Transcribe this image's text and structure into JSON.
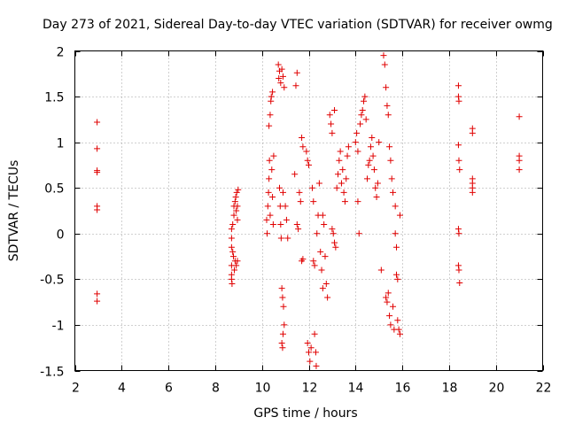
{
  "chart_data": {
    "type": "scatter",
    "title": "Day 273 of 2021, Sidereal Day-to-day VTEC variation (SDTVAR) for receiver owmg",
    "xlabel": "GPS time / hours",
    "ylabel": "SDTVAR / TECUs",
    "xlim": [
      2,
      22
    ],
    "ylim": [
      -1.5,
      2
    ],
    "xticks": [
      2,
      4,
      6,
      8,
      10,
      12,
      14,
      16,
      18,
      20,
      22
    ],
    "yticks": [
      -1.5,
      -1,
      -0.5,
      0,
      0.5,
      1,
      1.5,
      2
    ],
    "ytick_labels": [
      "-1.5",
      "-1",
      "-0.5",
      "0",
      "0.5",
      "1",
      "1.5",
      "2"
    ],
    "grid": true,
    "marker": "+",
    "color": "#e00000",
    "points": [
      [
        2.95,
        1.22
      ],
      [
        2.95,
        0.93
      ],
      [
        2.95,
        0.69
      ],
      [
        2.95,
        0.67
      ],
      [
        2.95,
        0.3
      ],
      [
        2.95,
        0.26
      ],
      [
        2.95,
        -0.66
      ],
      [
        2.95,
        -0.74
      ],
      [
        8.7,
        0.05
      ],
      [
        8.7,
        -0.05
      ],
      [
        8.7,
        -0.15
      ],
      [
        8.7,
        -0.35
      ],
      [
        8.7,
        -0.45
      ],
      [
        8.7,
        -0.5
      ],
      [
        8.72,
        -0.55
      ],
      [
        8.75,
        0.1
      ],
      [
        8.75,
        -0.2
      ],
      [
        8.78,
        -0.25
      ],
      [
        8.8,
        0.2
      ],
      [
        8.8,
        0.3
      ],
      [
        8.82,
        -0.4
      ],
      [
        8.85,
        -0.3
      ],
      [
        8.85,
        0.35
      ],
      [
        8.88,
        0.4
      ],
      [
        8.9,
        -0.35
      ],
      [
        8.9,
        0.25
      ],
      [
        8.92,
        0.45
      ],
      [
        8.95,
        -0.3
      ],
      [
        8.95,
        0.15
      ],
      [
        8.95,
        0.3
      ],
      [
        8.98,
        0.48
      ],
      [
        10.2,
        0.15
      ],
      [
        10.22,
        0.0
      ],
      [
        10.25,
        0.3
      ],
      [
        10.28,
        0.45
      ],
      [
        10.3,
        0.6
      ],
      [
        10.3,
        1.18
      ],
      [
        10.32,
        0.8
      ],
      [
        10.35,
        1.3
      ],
      [
        10.35,
        0.2
      ],
      [
        10.38,
        1.45
      ],
      [
        10.4,
        1.5
      ],
      [
        10.42,
        0.7
      ],
      [
        10.45,
        0.4
      ],
      [
        10.45,
        1.55
      ],
      [
        10.48,
        0.1
      ],
      [
        10.5,
        0.85
      ],
      [
        10.7,
        1.85
      ],
      [
        10.72,
        1.7
      ],
      [
        10.75,
        1.78
      ],
      [
        10.75,
        0.5
      ],
      [
        10.78,
        0.3
      ],
      [
        10.8,
        1.65
      ],
      [
        10.8,
        0.1
      ],
      [
        10.82,
        -0.05
      ],
      [
        10.85,
        1.8
      ],
      [
        10.85,
        -0.6
      ],
      [
        10.88,
        -0.7
      ],
      [
        10.9,
        1.72
      ],
      [
        10.9,
        0.45
      ],
      [
        10.92,
        -0.8
      ],
      [
        10.95,
        1.6
      ],
      [
        10.95,
        -1.0
      ],
      [
        10.85,
        -1.2
      ],
      [
        10.88,
        -1.25
      ],
      [
        10.9,
        -1.1
      ],
      [
        11.0,
        0.3
      ],
      [
        11.05,
        0.15
      ],
      [
        11.1,
        -0.05
      ],
      [
        11.4,
        0.65
      ],
      [
        11.45,
        1.62
      ],
      [
        11.5,
        1.76
      ],
      [
        11.5,
        0.1
      ],
      [
        11.55,
        0.05
      ],
      [
        11.6,
        0.45
      ],
      [
        11.65,
        0.35
      ],
      [
        11.7,
        -0.3
      ],
      [
        11.75,
        -0.28
      ],
      [
        11.7,
        1.05
      ],
      [
        11.75,
        0.95
      ],
      [
        11.9,
        0.9
      ],
      [
        11.95,
        0.8
      ],
      [
        12.0,
        0.75
      ],
      [
        11.95,
        -1.2
      ],
      [
        12.0,
        -1.3
      ],
      [
        12.05,
        -1.4
      ],
      [
        12.1,
        -1.25
      ],
      [
        12.15,
        0.5
      ],
      [
        12.2,
        0.35
      ],
      [
        12.2,
        -0.3
      ],
      [
        12.25,
        -0.35
      ],
      [
        12.25,
        -1.1
      ],
      [
        12.3,
        -1.3
      ],
      [
        12.32,
        -1.45
      ],
      [
        12.35,
        0.0
      ],
      [
        12.4,
        0.2
      ],
      [
        12.45,
        0.55
      ],
      [
        12.5,
        -0.2
      ],
      [
        12.55,
        -0.4
      ],
      [
        12.6,
        -0.6
      ],
      [
        12.6,
        0.2
      ],
      [
        12.65,
        0.1
      ],
      [
        12.7,
        -0.25
      ],
      [
        12.75,
        -0.55
      ],
      [
        12.8,
        -0.7
      ],
      [
        12.9,
        1.3
      ],
      [
        12.95,
        1.2
      ],
      [
        13.0,
        1.1
      ],
      [
        13.0,
        0.05
      ],
      [
        13.05,
        0.0
      ],
      [
        13.1,
        1.35
      ],
      [
        13.1,
        -0.1
      ],
      [
        13.15,
        -0.15
      ],
      [
        13.2,
        0.5
      ],
      [
        13.25,
        0.65
      ],
      [
        13.3,
        0.8
      ],
      [
        13.35,
        0.9
      ],
      [
        13.4,
        0.55
      ],
      [
        13.45,
        0.7
      ],
      [
        13.5,
        0.45
      ],
      [
        13.55,
        0.35
      ],
      [
        13.6,
        0.6
      ],
      [
        13.65,
        0.85
      ],
      [
        13.7,
        0.95
      ],
      [
        14.0,
        1.0
      ],
      [
        14.05,
        1.1
      ],
      [
        14.1,
        0.9
      ],
      [
        14.1,
        0.35
      ],
      [
        14.15,
        0.0
      ],
      [
        14.2,
        1.2
      ],
      [
        14.25,
        1.3
      ],
      [
        14.3,
        1.35
      ],
      [
        14.35,
        1.45
      ],
      [
        14.4,
        1.5
      ],
      [
        14.45,
        1.25
      ],
      [
        14.5,
        0.6
      ],
      [
        14.55,
        0.75
      ],
      [
        14.6,
        0.8
      ],
      [
        14.65,
        0.95
      ],
      [
        14.7,
        1.05
      ],
      [
        14.75,
        0.85
      ],
      [
        14.8,
        0.7
      ],
      [
        14.85,
        0.5
      ],
      [
        14.9,
        0.4
      ],
      [
        14.95,
        0.55
      ],
      [
        15.0,
        1.0
      ],
      [
        15.1,
        -0.4
      ],
      [
        15.2,
        1.95
      ],
      [
        15.25,
        1.85
      ],
      [
        15.3,
        1.6
      ],
      [
        15.3,
        -0.7
      ],
      [
        15.35,
        -0.75
      ],
      [
        15.35,
        1.4
      ],
      [
        15.4,
        1.3
      ],
      [
        15.4,
        -0.65
      ],
      [
        15.45,
        0.95
      ],
      [
        15.45,
        -0.9
      ],
      [
        15.5,
        0.8
      ],
      [
        15.5,
        -1.0
      ],
      [
        15.55,
        0.6
      ],
      [
        15.6,
        0.45
      ],
      [
        15.6,
        -0.8
      ],
      [
        15.65,
        -1.05
      ],
      [
        15.7,
        0.3
      ],
      [
        15.7,
        0.0
      ],
      [
        15.75,
        -0.15
      ],
      [
        15.75,
        -0.45
      ],
      [
        15.8,
        -0.5
      ],
      [
        15.8,
        -0.95
      ],
      [
        15.85,
        -1.05
      ],
      [
        15.9,
        0.2
      ],
      [
        15.9,
        -1.1
      ],
      [
        18.4,
        1.62
      ],
      [
        18.4,
        1.5
      ],
      [
        18.42,
        1.45
      ],
      [
        18.4,
        0.97
      ],
      [
        18.42,
        0.8
      ],
      [
        18.45,
        0.7
      ],
      [
        18.4,
        0.05
      ],
      [
        18.42,
        0.0
      ],
      [
        18.4,
        -0.35
      ],
      [
        18.42,
        -0.4
      ],
      [
        18.45,
        -0.54
      ],
      [
        19.0,
        1.15
      ],
      [
        19.0,
        1.1
      ],
      [
        19.0,
        0.6
      ],
      [
        19.0,
        0.55
      ],
      [
        19.0,
        0.5
      ],
      [
        19.0,
        0.45
      ],
      [
        21.0,
        1.28
      ],
      [
        21.0,
        0.85
      ],
      [
        21.0,
        0.8
      ],
      [
        21.0,
        0.7
      ]
    ]
  }
}
